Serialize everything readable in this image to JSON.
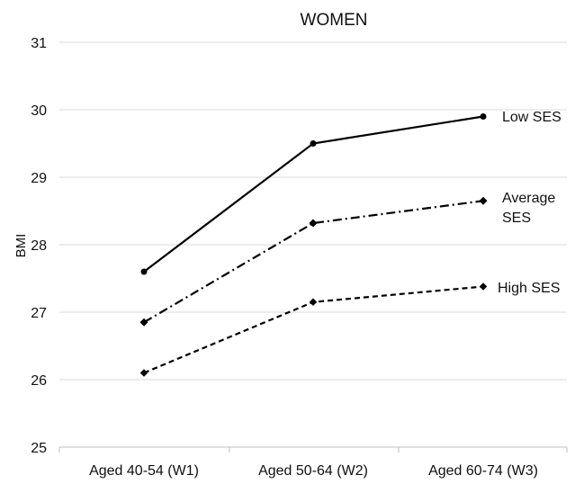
{
  "chart_data": {
    "type": "line",
    "title": "WOMEN",
    "xlabel": "",
    "ylabel": "BMI",
    "categories": [
      "Aged 40-54 (W1)",
      "Aged 50-64 (W2)",
      "Aged 60-74 (W3)"
    ],
    "ylim": [
      25,
      31
    ],
    "yticks": [
      25,
      26,
      27,
      28,
      29,
      30,
      31
    ],
    "grid": true,
    "legend": "inline labels at line ends",
    "series": [
      {
        "name": "Low SES",
        "label_lines": [
          "Low SES"
        ],
        "values": [
          27.6,
          29.5,
          29.9
        ],
        "line_style": "solid",
        "marker": "circle"
      },
      {
        "name": "Average SES",
        "label_lines": [
          "Average",
          "SES"
        ],
        "values": [
          26.85,
          28.32,
          28.65
        ],
        "line_style": "dashdot",
        "marker": "diamond"
      },
      {
        "name": "High SES",
        "label_lines": [
          "High SES"
        ],
        "values": [
          26.1,
          27.15,
          27.38
        ],
        "line_style": "dashed",
        "marker": "cross"
      }
    ],
    "colors": {
      "line": "#000000",
      "grid": "#d9d9d9",
      "axis": "#bfbfbf"
    }
  }
}
